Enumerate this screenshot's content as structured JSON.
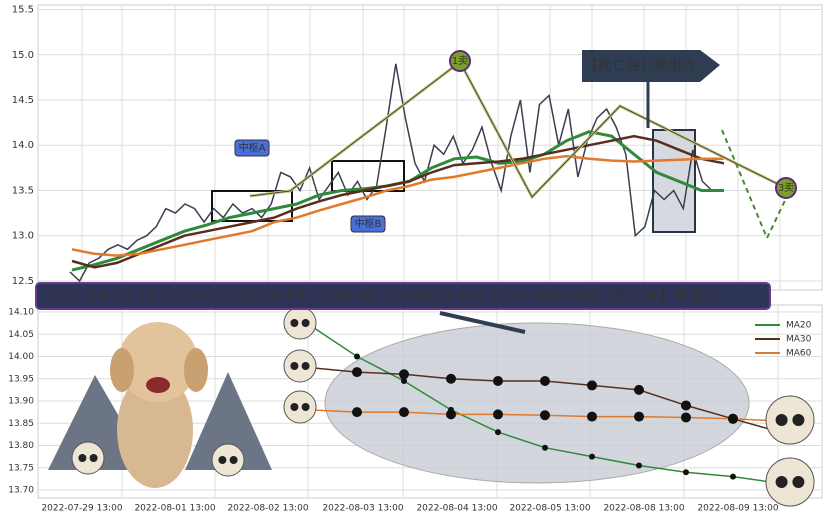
{
  "chart_data": [
    {
      "type": "line",
      "ylim": [
        12.4,
        15.55
      ],
      "yticks": [
        12.5,
        {
          "value": 13,
          "label": "13.0"
        },
        13.5,
        {
          "value": 14,
          "label": "14.0"
        },
        14.5,
        {
          "value": 15,
          "label": "15.0"
        },
        15.5
      ],
      "grid": true,
      "annotations": [
        "中枢A",
        "中枢B",
        "1卖",
        "3卖",
        "【死亡谷】卖出点"
      ],
      "series": [
        {
          "name": "price",
          "color": "#3a3f4f",
          "values": [
            12.6,
            12.5,
            12.7,
            12.75,
            12.85,
            12.9,
            12.85,
            12.95,
            13.0,
            13.1,
            13.3,
            13.25,
            13.35,
            13.3,
            13.15,
            13.3,
            13.2,
            13.35,
            13.25,
            13.3,
            13.2,
            13.35,
            13.7,
            13.65,
            13.5,
            13.75,
            13.4,
            13.55,
            13.7,
            13.45,
            13.6,
            13.4,
            13.55,
            14.2,
            14.9,
            14.3,
            13.8,
            13.6,
            14.0,
            13.9,
            14.1,
            13.8,
            13.95,
            14.2,
            13.8,
            13.5,
            14.1,
            14.5,
            13.7,
            14.45,
            14.55,
            14.0,
            14.4,
            13.65,
            14.05,
            14.3,
            14.4,
            14.2,
            13.9,
            13.0,
            13.1,
            13.5,
            13.4,
            13.5,
            13.3,
            13.95,
            13.6,
            13.5
          ]
        },
        {
          "name": "MA20",
          "color": "#2e8b3a",
          "values": [
            12.62,
            12.68,
            12.75,
            12.85,
            12.95,
            13.05,
            13.12,
            13.2,
            13.25,
            13.3,
            13.35,
            13.45,
            13.5,
            13.52,
            13.55,
            13.6,
            13.75,
            13.85,
            13.87,
            13.8,
            13.82,
            13.9,
            14.05,
            14.15,
            14.1,
            13.9,
            13.7,
            13.6,
            13.5,
            13.5
          ]
        },
        {
          "name": "MA30",
          "color": "#5a2e1e",
          "values": [
            12.72,
            12.65,
            12.7,
            12.8,
            12.9,
            13.0,
            13.05,
            13.1,
            13.15,
            13.2,
            13.3,
            13.38,
            13.45,
            13.5,
            13.55,
            13.6,
            13.7,
            13.78,
            13.8,
            13.82,
            13.85,
            13.9,
            13.95,
            14.0,
            14.05,
            14.1,
            14.05,
            13.95,
            13.85,
            13.8
          ]
        },
        {
          "name": "MA60",
          "color": "#e07a2a",
          "values": [
            12.85,
            12.8,
            12.78,
            12.8,
            12.85,
            12.9,
            12.95,
            13.0,
            13.05,
            13.15,
            13.2,
            13.28,
            13.35,
            13.42,
            13.5,
            13.55,
            13.62,
            13.65,
            13.7,
            13.75,
            13.8,
            13.85,
            13.88,
            13.85,
            13.83,
            13.82,
            13.83,
            13.84,
            13.85,
            13.85
          ]
        }
      ]
    },
    {
      "type": "line",
      "title": "2022-08-02 14:00:00至2022-08-09 13:00:00 20小时,30小时,60小时均线形成【死亡谷】卖出点",
      "x_labels": [
        "2022-07-29 13:00",
        "2022-08-01 13:00",
        "2022-08-02 13:00",
        "2022-08-03 13:00",
        "2022-08-04 13:00",
        "2022-08-05 13:00",
        "2022-08-08 13:00",
        "2022-08-09 13:00"
      ],
      "ylim": [
        13.685,
        14.1
      ],
      "yticks": [
        {
          "value": 13.7,
          "label": "13.70"
        },
        13.75,
        {
          "value": 13.8,
          "label": "13.80"
        },
        13.85,
        {
          "value": 13.9,
          "label": "13.90"
        },
        13.95,
        {
          "value": 14,
          "label": "14.00"
        },
        14.05,
        {
          "value": 14.1,
          "label": "14.10"
        }
      ],
      "grid": true,
      "legend": "upper right",
      "series": [
        {
          "name": "MA20",
          "color": "#2e8b3a",
          "values": [
            14.07,
            14.0,
            13.945,
            13.88,
            13.83,
            13.795,
            13.775,
            13.755,
            13.74,
            13.73,
            13.715
          ]
        },
        {
          "name": "MA30",
          "color": "#5a2e1e",
          "values": [
            13.975,
            13.965,
            13.96,
            13.95,
            13.945,
            13.945,
            13.935,
            13.925,
            13.89,
            13.86,
            13.83
          ]
        },
        {
          "name": "MA60",
          "color": "#e07a2a",
          "values": [
            13.88,
            13.875,
            13.875,
            13.87,
            13.87,
            13.868,
            13.865,
            13.865,
            13.863,
            13.86,
            13.855
          ]
        }
      ]
    }
  ]
}
